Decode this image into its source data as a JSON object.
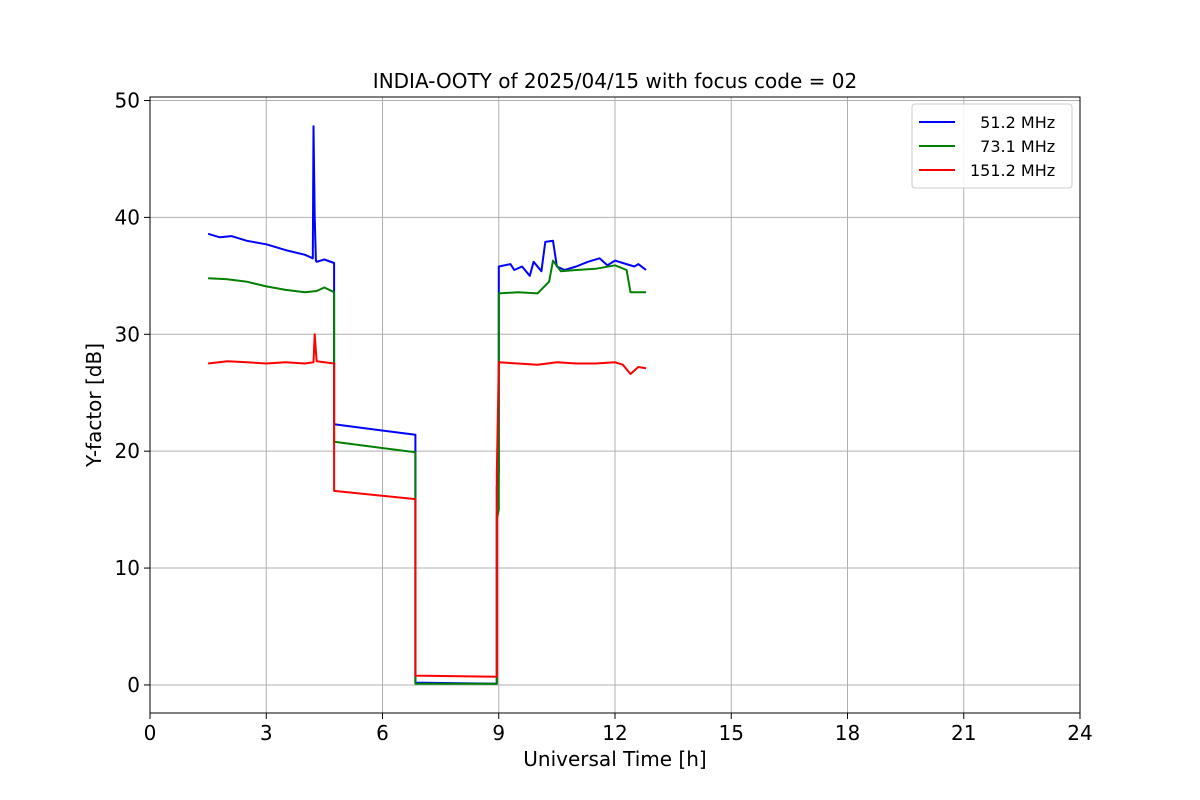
{
  "chart_data": {
    "type": "line",
    "title": "INDIA-OOTY of 2025/04/15 with focus code = 02",
    "xlabel": "Universal Time [h]",
    "ylabel": "Y-factor [dB]",
    "xlim": [
      0,
      24
    ],
    "ylim": [
      -2.4,
      50.3
    ],
    "xticks": [
      0,
      3,
      6,
      9,
      12,
      15,
      18,
      21,
      24
    ],
    "yticks": [
      0,
      10,
      20,
      30,
      40,
      50
    ],
    "grid": true,
    "legend_position": "top-right",
    "series": [
      {
        "name": "  51.2 MHz",
        "color": "#0000ff",
        "x": [
          1.5,
          1.8,
          2.1,
          2.5,
          3.0,
          3.5,
          4.0,
          4.2,
          4.22,
          4.25,
          4.28,
          4.3,
          4.5,
          4.75,
          4.75,
          6.85,
          6.85,
          8.95,
          8.95,
          9.0,
          9.0,
          9.3,
          9.4,
          9.6,
          9.8,
          9.9,
          10.1,
          10.2,
          10.4,
          10.5,
          10.7,
          11.0,
          11.3,
          11.6,
          11.8,
          12.0,
          12.2,
          12.5,
          12.6,
          12.8
        ],
        "y": [
          38.6,
          38.3,
          38.4,
          38.0,
          37.7,
          37.2,
          36.8,
          36.5,
          47.8,
          40.0,
          36.3,
          36.2,
          36.4,
          36.1,
          22.3,
          21.4,
          0.2,
          0.1,
          17.0,
          18.2,
          35.8,
          36.0,
          35.5,
          35.8,
          35.0,
          36.2,
          35.4,
          37.9,
          38.0,
          35.8,
          35.5,
          35.8,
          36.2,
          36.5,
          35.9,
          36.3,
          36.1,
          35.8,
          36.0,
          35.5
        ]
      },
      {
        "name": "  73.1 MHz",
        "color": "#008000",
        "x": [
          1.5,
          2.0,
          2.5,
          3.0,
          3.5,
          4.0,
          4.3,
          4.5,
          4.75,
          4.75,
          6.85,
          6.85,
          8.95,
          8.95,
          9.0,
          9.0,
          9.5,
          10.0,
          10.3,
          10.4,
          10.6,
          11.0,
          11.5,
          12.0,
          12.3,
          12.4,
          12.8
        ],
        "y": [
          34.8,
          34.7,
          34.5,
          34.1,
          33.8,
          33.6,
          33.7,
          34.0,
          33.6,
          20.8,
          19.9,
          0.1,
          0.1,
          14.3,
          15.0,
          33.5,
          33.6,
          33.5,
          34.5,
          36.3,
          35.4,
          35.5,
          35.6,
          35.9,
          35.5,
          33.6,
          33.6
        ]
      },
      {
        "name": "151.2 MHz",
        "color": "#ff0000",
        "x": [
          1.5,
          2.0,
          2.5,
          3.0,
          3.5,
          4.0,
          4.22,
          4.25,
          4.3,
          4.75,
          4.75,
          6.85,
          6.85,
          8.95,
          8.95,
          9.0,
          9.5,
          10.0,
          10.5,
          11.0,
          11.5,
          12.0,
          12.2,
          12.4,
          12.6,
          12.8
        ],
        "y": [
          27.5,
          27.7,
          27.6,
          27.5,
          27.6,
          27.5,
          27.6,
          30.0,
          27.7,
          27.5,
          16.6,
          15.9,
          0.8,
          0.7,
          18.0,
          27.6,
          27.5,
          27.4,
          27.6,
          27.5,
          27.5,
          27.6,
          27.4,
          26.6,
          27.2,
          27.1
        ]
      }
    ]
  }
}
